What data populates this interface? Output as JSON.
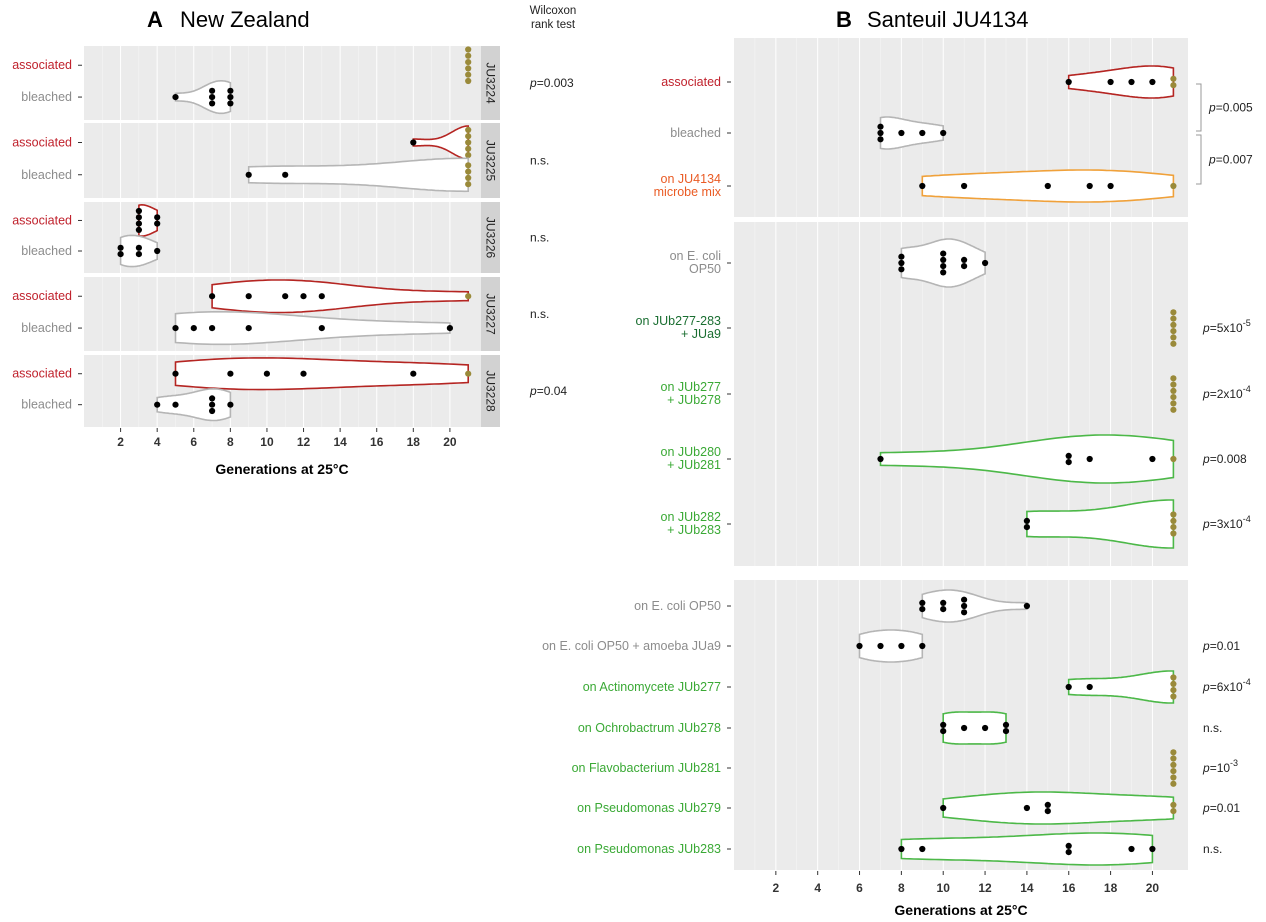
{
  "colors": {
    "panel_bg": "#ebebeb",
    "grid": "#ffffff",
    "strip_bg": "#d2d2d2",
    "associated": "#c0222d",
    "bleached": "#8c8c8c",
    "mix": "#ea5b24",
    "bacteria": "#3aa935",
    "bacteria_dark": "#1a6e31",
    "violin_grey": "#b5b5b5",
    "violin_red": "#b52522",
    "violin_orange": "#f0a13a",
    "violin_green": "#4cb848",
    "dot": "#000000",
    "dot_censored": "#9a8a3a"
  },
  "panelA": {
    "letter": "A",
    "title": "New Zealand",
    "xlabel": "Generations at 25°C",
    "header": {
      "line1": "Wilcoxon",
      "line2": "rank test"
    }
  },
  "panelB": {
    "letter": "B",
    "title": "Santeuil JU4134",
    "xlabel": "Generations at 25°C"
  },
  "chart_data": [
    {
      "type": "violin",
      "panel": "A",
      "xlim": [
        0,
        21.7
      ],
      "xticks": [
        2,
        4,
        6,
        8,
        10,
        12,
        14,
        16,
        18,
        20
      ],
      "censor_value": 21,
      "facets": [
        {
          "strip": "JU3224",
          "pvalue": "p=0.003",
          "rows": [
            {
              "label": "associated",
              "color": "associated",
              "violin": "",
              "values": [
                21,
                21,
                21,
                21,
                21,
                21
              ]
            },
            {
              "label": "bleached",
              "color": "bleached",
              "violin": "violin_grey",
              "values": [
                5,
                7,
                7,
                7,
                8,
                8,
                8
              ]
            }
          ]
        },
        {
          "strip": "JU3225",
          "pvalue": "n.s.",
          "rows": [
            {
              "label": "associated",
              "color": "associated",
              "violin": "violin_red",
              "values": [
                18,
                21,
                21,
                21,
                21,
                21
              ]
            },
            {
              "label": "bleached",
              "color": "bleached",
              "violin": "violin_grey",
              "values": [
                9,
                11,
                21,
                21,
                21,
                21
              ]
            }
          ]
        },
        {
          "strip": "JU3226",
          "pvalue": "n.s.",
          "rows": [
            {
              "label": "associated",
              "color": "associated",
              "violin": "violin_red",
              "values": [
                3,
                3,
                3,
                3,
                4,
                4
              ]
            },
            {
              "label": "bleached",
              "color": "bleached",
              "violin": "violin_grey",
              "values": [
                2,
                2,
                3,
                3,
                4
              ]
            }
          ]
        },
        {
          "strip": "JU3227",
          "pvalue": "n.s.",
          "rows": [
            {
              "label": "associated",
              "color": "associated",
              "violin": "violin_red",
              "values": [
                7,
                9,
                11,
                12,
                13,
                21
              ]
            },
            {
              "label": "bleached",
              "color": "bleached",
              "violin": "violin_grey",
              "values": [
                5,
                6,
                7,
                9,
                13,
                20
              ]
            }
          ]
        },
        {
          "strip": "JU3228",
          "pvalue": "p=0.04",
          "rows": [
            {
              "label": "associated",
              "color": "associated",
              "violin": "violin_red",
              "values": [
                5,
                8,
                10,
                12,
                18,
                21
              ]
            },
            {
              "label": "bleached",
              "color": "bleached",
              "violin": "violin_grey",
              "values": [
                4,
                5,
                7,
                7,
                7,
                8
              ]
            }
          ]
        }
      ]
    },
    {
      "type": "violin",
      "panel": "B",
      "xlim": [
        0,
        21.7
      ],
      "xticks": [
        2,
        4,
        6,
        8,
        10,
        12,
        14,
        16,
        18,
        20
      ],
      "censor_value": 21,
      "groups": [
        {
          "rows": [
            {
              "label": [
                "associated"
              ],
              "color": "associated",
              "violin": "violin_red",
              "values": [
                16,
                18,
                19,
                20,
                21,
                21
              ]
            },
            {
              "label": [
                "bleached"
              ],
              "color": "bleached",
              "violin": "violin_grey",
              "values": [
                7,
                7,
                7,
                8,
                9,
                10
              ]
            },
            {
              "label": [
                "on JU4134",
                "microbe mix"
              ],
              "color": "mix",
              "violin": "violin_orange",
              "values": [
                9,
                11,
                15,
                17,
                18,
                21
              ]
            }
          ],
          "brackets": [
            {
              "from": 0,
              "to": 1,
              "text": "p=0.005"
            },
            {
              "from": 1,
              "to": 2,
              "text": "p=0.007"
            }
          ]
        },
        {
          "rows": [
            {
              "label": [
                "on E. coli",
                "OP50"
              ],
              "color": "bleached",
              "violin": "violin_grey",
              "values": [
                8,
                8,
                8,
                10,
                10,
                10,
                10,
                11,
                11,
                12
              ]
            },
            {
              "label": [
                "on JUb277-283",
                "+ JUa9"
              ],
              "color": "bacteria_dark",
              "violin": "",
              "values": [
                21,
                21,
                21,
                21,
                21,
                21
              ],
              "pvalue": "p=5x10",
              "pexp": "-5"
            },
            {
              "label": [
                "on JUb277",
                "+ JUb278"
              ],
              "color": "bacteria",
              "violin": "",
              "values": [
                21,
                21,
                21,
                21,
                21,
                21
              ],
              "pvalue": "p=2x10",
              "pexp": "-4"
            },
            {
              "label": [
                "on JUb280",
                "+ JUb281"
              ],
              "color": "bacteria",
              "violin": "violin_green",
              "values": [
                7,
                16,
                16,
                17,
                20,
                21
              ],
              "pvalue": "p=0.008"
            },
            {
              "label": [
                "on JUb282",
                "+ JUb283"
              ],
              "color": "bacteria",
              "violin": "violin_green",
              "values": [
                14,
                14,
                21,
                21,
                21,
                21
              ],
              "pvalue": "p=3x10",
              "pexp": "-4"
            }
          ]
        },
        {
          "rows": [
            {
              "label": [
                "on E. coli OP50"
              ],
              "color": "bleached",
              "violin": "violin_grey",
              "values": [
                9,
                9,
                10,
                10,
                11,
                11,
                11,
                14
              ]
            },
            {
              "label": [
                "on E. coli OP50 + amoeba JUa9"
              ],
              "color": "bleached",
              "violin": "violin_grey",
              "values": [
                6,
                7,
                8,
                9
              ],
              "pvalue": "p=0.01"
            },
            {
              "label": [
                "on Actinomycete JUb277"
              ],
              "color": "bacteria",
              "violin": "violin_green",
              "values": [
                16,
                17,
                21,
                21,
                21,
                21
              ],
              "pvalue": "p=6x10",
              "pexp": "-4"
            },
            {
              "label": [
                "on Ochrobactrum JUb278"
              ],
              "color": "bacteria",
              "violin": "violin_green",
              "values": [
                10,
                10,
                11,
                12,
                13,
                13
              ],
              "pvalue": "n.s."
            },
            {
              "label": [
                "on  Flavobacterium JUb281"
              ],
              "color": "bacteria",
              "violin": "",
              "values": [
                21,
                21,
                21,
                21,
                21,
                21
              ],
              "pvalue": "p=10",
              "pexp": "-3"
            },
            {
              "label": [
                "on Pseudomonas JUb279"
              ],
              "color": "bacteria",
              "violin": "violin_green",
              "values": [
                10,
                14,
                15,
                15,
                21,
                21
              ],
              "pvalue": "p=0.01"
            },
            {
              "label": [
                "on Pseudomonas JUb283"
              ],
              "color": "bacteria",
              "violin": "violin_green",
              "values": [
                8,
                9,
                16,
                16,
                19,
                20
              ],
              "pvalue": "n.s."
            }
          ]
        }
      ]
    }
  ]
}
